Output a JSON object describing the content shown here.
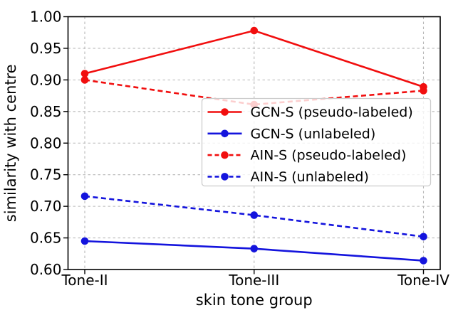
{
  "chart_data": {
    "type": "line",
    "title": "",
    "xlabel": "skin tone group",
    "ylabel": "similarity with centre",
    "categories": [
      "Tone-II",
      "Tone-III",
      "Tone-IV"
    ],
    "ylim": [
      0.6,
      1.0
    ],
    "ytick_labels": [
      "1.00",
      "0.95",
      "0.90",
      "0.85",
      "0.80",
      "0.75",
      "0.70",
      "0.65",
      "0.60"
    ],
    "ytick_values": [
      1.0,
      0.95,
      0.9,
      0.85,
      0.8,
      0.75,
      0.7,
      0.65,
      0.6
    ],
    "grid": "dashed",
    "legend_position": "center right",
    "colors": {
      "red": "#f10e0e",
      "blue": "#1414dd",
      "gridline": "#b8b8b8",
      "legend_edge": "#cccccc",
      "axis": "#000000"
    },
    "series": [
      {
        "name": "GCN-S (pseudo-labeled)",
        "color": "#f10e0e",
        "line_style": "solid",
        "marker": "circle",
        "values": [
          0.91,
          0.978,
          0.889
        ]
      },
      {
        "name": "GCN-S (unlabeled)",
        "color": "#1414dd",
        "line_style": "solid",
        "marker": "circle",
        "values": [
          0.645,
          0.633,
          0.614
        ]
      },
      {
        "name": "AIN-S (pseudo-labeled)",
        "color": "#f10e0e",
        "line_style": "dashed",
        "marker": "circle",
        "values": [
          0.9,
          0.861,
          0.883
        ]
      },
      {
        "name": "AIN-S (unlabeled)",
        "color": "#1414dd",
        "line_style": "dashed",
        "marker": "circle",
        "values": [
          0.716,
          0.686,
          0.652
        ]
      }
    ]
  }
}
